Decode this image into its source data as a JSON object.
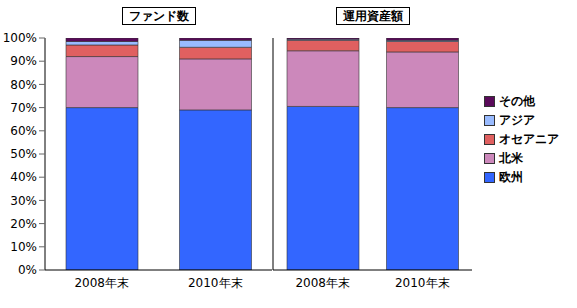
{
  "chart_data": [
    {
      "type": "bar",
      "title": "ファンド数",
      "stacked": true,
      "categories": [
        "2008年末",
        "2010年末"
      ],
      "series": [
        {
          "name": "欧州",
          "color": "#3366ff",
          "values": [
            70,
            69
          ]
        },
        {
          "name": "北米",
          "color": "#cc88bb",
          "values": [
            22,
            22
          ]
        },
        {
          "name": "オセアニア",
          "color": "#e06060",
          "values": [
            5,
            5
          ]
        },
        {
          "name": "アジア",
          "color": "#99bbff",
          "values": [
            1.5,
            3
          ]
        },
        {
          "name": "その他",
          "color": "#5a0a5a",
          "values": [
            1.5,
            1
          ]
        }
      ],
      "ylim": [
        0,
        100
      ],
      "yticks": [
        {
          "value": 0,
          "label": "0%"
        },
        {
          "value": 10,
          "label": "10%"
        },
        {
          "value": 20,
          "label": "20%"
        },
        {
          "value": 30,
          "label": "30%"
        },
        {
          "value": 40,
          "label": "40%"
        },
        {
          "value": 50,
          "label": "50%"
        },
        {
          "value": 60,
          "label": "60%"
        },
        {
          "value": 70,
          "label": "70%"
        },
        {
          "value": 80,
          "label": "80%"
        },
        {
          "value": 90,
          "label": "90%"
        },
        {
          "value": 100,
          "label": "100%"
        }
      ]
    },
    {
      "type": "bar",
      "title": "運用資産額",
      "stacked": true,
      "tick_labels": "x",
      "legend": "right",
      "categories": [
        "2008年末",
        "2010年末"
      ],
      "series": [
        {
          "name": "欧州",
          "color": "#3366ff",
          "values": [
            70.5,
            70
          ]
        },
        {
          "name": "北米",
          "color": "#cc88bb",
          "values": [
            24,
            24
          ]
        },
        {
          "name": "オセアニア",
          "color": "#e06060",
          "values": [
            4.5,
            4.5
          ]
        },
        {
          "name": "アジア",
          "color": "#99bbff",
          "values": [
            0.5,
            0.5
          ]
        },
        {
          "name": "その他",
          "color": "#5a0a5a",
          "values": [
            0.5,
            1
          ]
        }
      ],
      "ylim": [
        0,
        100
      ],
      "yticks": [
        {
          "value": 0,
          "label": "0%"
        },
        {
          "value": 10,
          "label": "10%"
        },
        {
          "value": 20,
          "label": "20%"
        },
        {
          "value": 30,
          "label": "30%"
        },
        {
          "value": 40,
          "label": "40%"
        },
        {
          "value": 50,
          "label": "50%"
        },
        {
          "value": 60,
          "label": "60%"
        },
        {
          "value": 70,
          "label": "70%"
        },
        {
          "value": 80,
          "label": "80%"
        },
        {
          "value": 90,
          "label": "90%"
        },
        {
          "value": 100,
          "label": "100%"
        }
      ]
    }
  ]
}
